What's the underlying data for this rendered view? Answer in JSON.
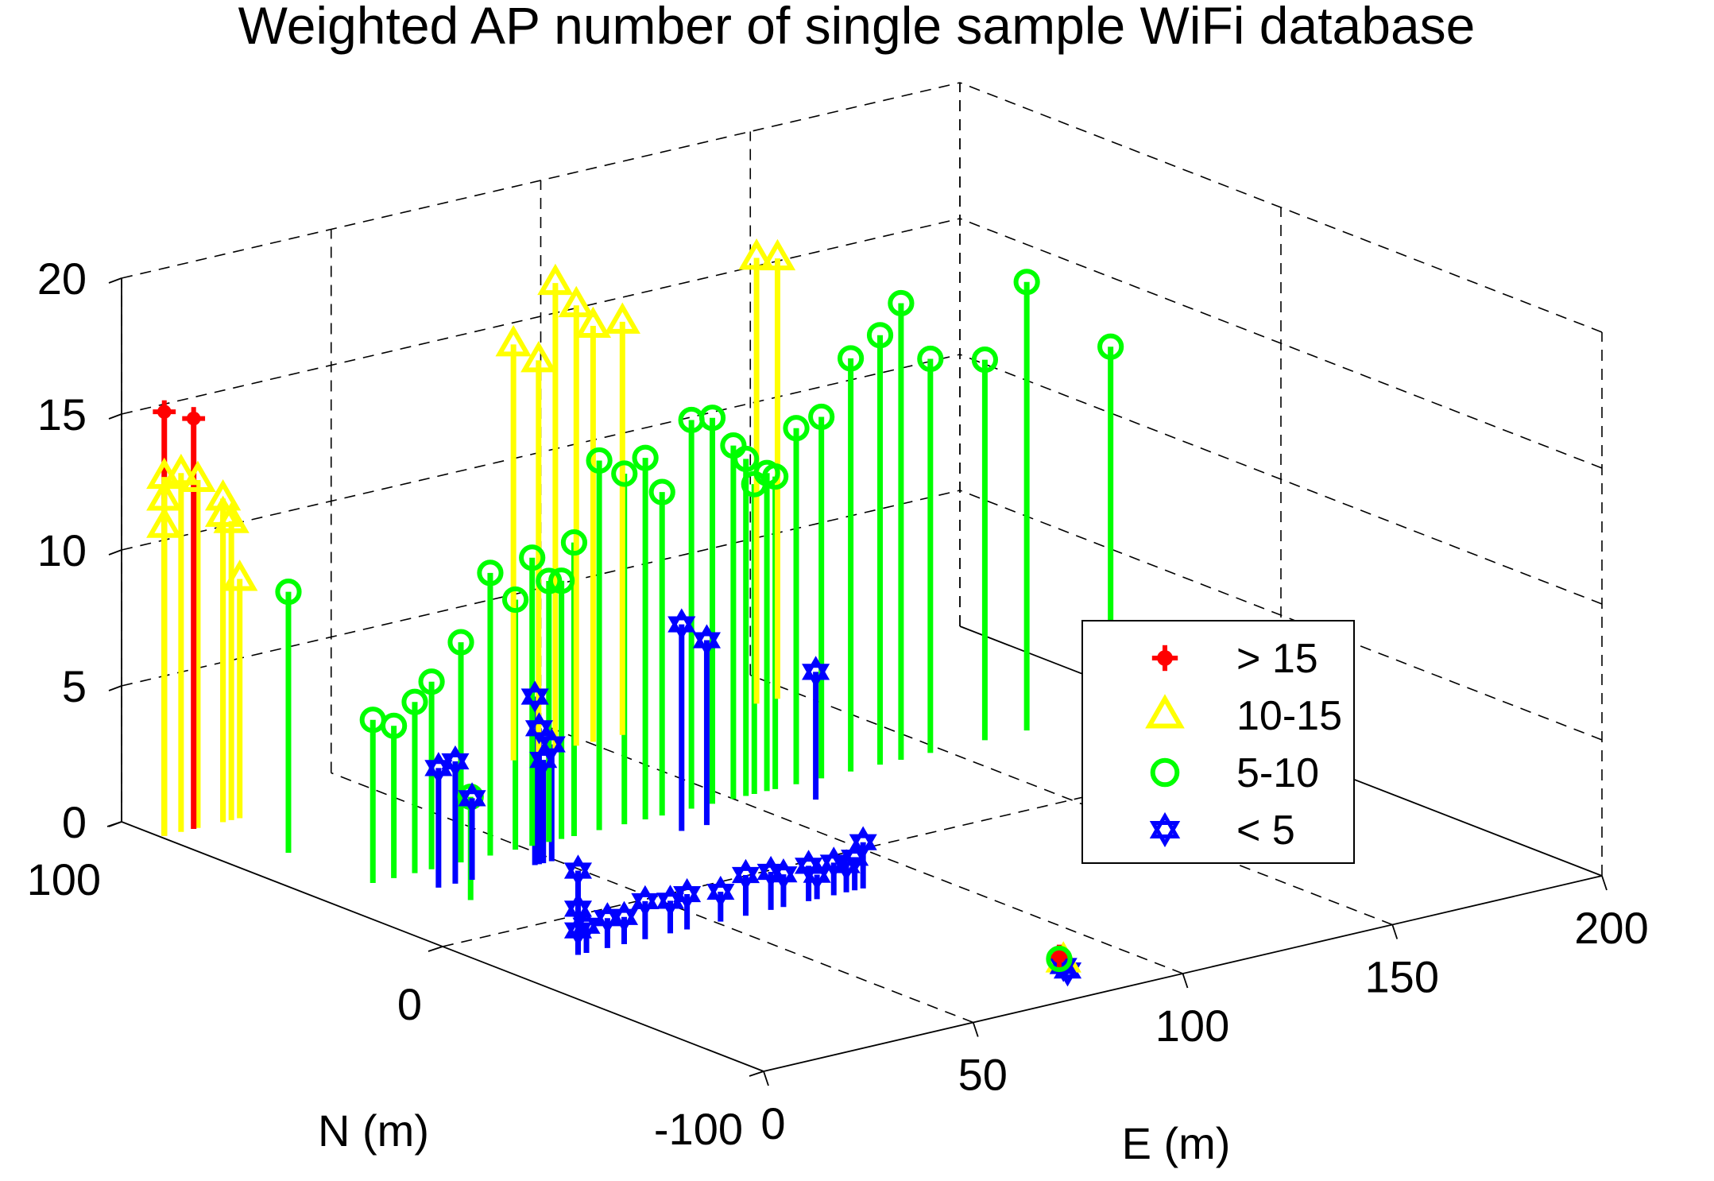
{
  "chart_data": {
    "type": "scatter3d-stem",
    "title": "Weighted AP number of single sample WiFi database",
    "xlabel": "E (m)",
    "ylabel": "N (m)",
    "zlabel": "",
    "xlim": [
      0,
      200
    ],
    "ylim": [
      -100,
      100
    ],
    "zlim": [
      0,
      20
    ],
    "x_ticks": [
      "0",
      "50",
      "100",
      "150",
      "200"
    ],
    "y_ticks": [
      "-100",
      "0",
      "100"
    ],
    "z_ticks": [
      "0",
      "5",
      "10",
      "15",
      "20"
    ],
    "grid": true,
    "legend_position": "right",
    "series": [
      {
        "name": "> 15",
        "color": "#ff0000",
        "marker": "plus-filled",
        "points": [
          [
            1,
            88,
            15.6
          ],
          [
            8,
            88,
            15.1
          ],
          [
            82,
            -85,
            0.6
          ]
        ]
      },
      {
        "name": "10-15",
        "color": "#ffff00",
        "marker": "triangle",
        "points": [
          [
            1,
            88,
            13.2
          ],
          [
            1,
            88,
            12.4
          ],
          [
            1,
            88,
            11.4
          ],
          [
            5,
            88,
            13.2
          ],
          [
            9,
            88,
            12.8
          ],
          [
            15,
            88,
            11.9
          ],
          [
            15,
            88,
            11.3
          ],
          [
            17,
            88,
            11.0
          ],
          [
            19,
            88,
            8.8
          ],
          [
            82,
            85,
            15.3
          ],
          [
            88,
            85,
            14.5
          ],
          [
            92,
            85,
            17.2
          ],
          [
            97,
            85,
            16.2
          ],
          [
            101,
            85,
            15.3
          ],
          [
            108,
            85,
            15.2
          ],
          [
            140,
            85,
            16.4
          ],
          [
            145,
            85,
            16.2
          ],
          [
            83,
            -85,
            0.4
          ]
        ]
      },
      {
        "name": "5-10",
        "color": "#00ff00",
        "marker": "circle",
        "points": [
          [
            13,
            65,
            9.6
          ],
          [
            14,
            40,
            6.0
          ],
          [
            19,
            40,
            5.6
          ],
          [
            24,
            40,
            6.3
          ],
          [
            28,
            40,
            6.9
          ],
          [
            22,
            20,
            3.8
          ],
          [
            35,
            40,
            8.1
          ],
          [
            42,
            40,
            10.4
          ],
          [
            48,
            40,
            9.2
          ],
          [
            52,
            40,
            10.6
          ],
          [
            56,
            40,
            9.6
          ],
          [
            59,
            40,
            9.5
          ],
          [
            62,
            40,
            10.8
          ],
          [
            68,
            40,
            13.6
          ],
          [
            74,
            40,
            12.9
          ],
          [
            79,
            40,
            13.3
          ],
          [
            83,
            40,
            11.9
          ],
          [
            90,
            40,
            14.3
          ],
          [
            95,
            40,
            14.2
          ],
          [
            100,
            40,
            13.0
          ],
          [
            103,
            40,
            12.4
          ],
          [
            105,
            40,
            11.4
          ],
          [
            108,
            40,
            11.7
          ],
          [
            110,
            40,
            11.5
          ],
          [
            115,
            40,
            13.1
          ],
          [
            121,
            40,
            13.3
          ],
          [
            128,
            40,
            15.2
          ],
          [
            135,
            40,
            15.8
          ],
          [
            140,
            40,
            16.8
          ],
          [
            147,
            40,
            14.5
          ],
          [
            160,
            40,
            14.0
          ],
          [
            170,
            40,
            16.5
          ],
          [
            190,
            40,
            13.4
          ],
          [
            82,
            -85,
            0.5
          ]
        ]
      },
      {
        "name": "< 5",
        "color": "#0000ff",
        "marker": "hexagram",
        "points": [
          [
            22,
            30,
            4.4
          ],
          [
            26,
            30,
            4.5
          ],
          [
            30,
            30,
            3.0
          ],
          [
            45,
            30,
            6.2
          ],
          [
            46,
            30,
            5.0
          ],
          [
            47,
            30,
            3.8
          ],
          [
            49,
            30,
            4.3
          ],
          [
            80,
            30,
            7.6
          ],
          [
            86,
            30,
            6.8
          ],
          [
            112,
            30,
            4.7
          ],
          [
            17,
            -20,
            3.1
          ],
          [
            17,
            -20,
            1.7
          ],
          [
            17,
            -20,
            0.9
          ],
          [
            19,
            -20,
            1.0
          ],
          [
            24,
            -20,
            1.1
          ],
          [
            28,
            -20,
            1.0
          ],
          [
            33,
            -20,
            1.4
          ],
          [
            39,
            -20,
            1.2
          ],
          [
            43,
            -20,
            1.3
          ],
          [
            51,
            -20,
            1.1
          ],
          [
            57,
            -20,
            1.5
          ],
          [
            63,
            -20,
            1.4
          ],
          [
            66,
            -20,
            1.2
          ],
          [
            72,
            -20,
            1.3
          ],
          [
            74,
            -20,
            0.9
          ],
          [
            78,
            -20,
            1.2
          ],
          [
            81,
            -20,
            1.0
          ],
          [
            83,
            -20,
            1.2
          ],
          [
            85,
            -20,
            1.7
          ],
          [
            83,
            -85,
            0.2
          ],
          [
            84,
            -85,
            0.0
          ]
        ]
      }
    ]
  }
}
